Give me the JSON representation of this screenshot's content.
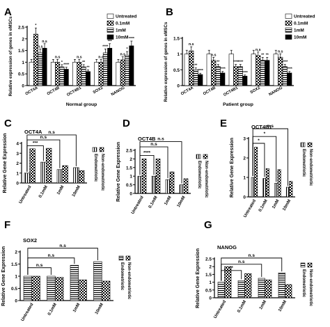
{
  "colors": {
    "ink": "#000000",
    "white": "#ffffff",
    "light_fill": "#e6e6e6"
  },
  "chart_data": [
    {
      "id": "A",
      "panel_label": "A",
      "type": "bar",
      "xlabel": "Normal group",
      "ylabel": "Relative expression of genes in eMSCs",
      "ylim": [
        0,
        2.5
      ],
      "yticks": [
        0,
        0.5,
        1,
        1.5,
        2,
        2.5
      ],
      "categories": [
        "OCT4A",
        "OCT4B",
        "OCT4B1",
        "SOX2",
        "NANOG"
      ],
      "legend_position": "top-right",
      "series": [
        {
          "name": "Untreated",
          "pattern": "white",
          "values": [
            1.0,
            1.0,
            1.0,
            1.0,
            1.0
          ]
        },
        {
          "name": "0.1mM",
          "pattern": "check",
          "values": [
            2.2,
            1.0,
            1.0,
            1.0,
            1.1
          ]
        },
        {
          "name": "1mM",
          "pattern": "hstripe",
          "values": [
            1.4,
            0.8,
            0.8,
            1.4,
            1.3
          ]
        },
        {
          "name": "10mM",
          "pattern": "black",
          "values": [
            1.6,
            0.7,
            0.6,
            1.6,
            1.7
          ]
        }
      ],
      "annotations": [
        {
          "cat": 0,
          "series": 1,
          "text": "*"
        },
        {
          "cat": 0,
          "series": 2,
          "text": "n.s"
        },
        {
          "cat": 0,
          "series": 3,
          "text": "n.s"
        },
        {
          "cat": 1,
          "series": 1,
          "text": "n.s"
        },
        {
          "cat": 1,
          "series": 2,
          "text": "*"
        },
        {
          "cat": 1,
          "series": 3,
          "text": "****"
        },
        {
          "cat": 2,
          "series": 1,
          "text": "n.s"
        },
        {
          "cat": 2,
          "series": 2,
          "text": "**"
        },
        {
          "cat": 2,
          "series": 3,
          "text": "**"
        },
        {
          "cat": 3,
          "series": 1,
          "text": "n.s"
        },
        {
          "cat": 3,
          "series": 2,
          "text": "****"
        },
        {
          "cat": 3,
          "series": 3,
          "text": "***"
        },
        {
          "cat": 4,
          "series": 1,
          "text": "n.s"
        },
        {
          "cat": 4,
          "series": 2,
          "text": "*"
        },
        {
          "cat": 4,
          "series": 3,
          "text": "****"
        }
      ]
    },
    {
      "id": "B",
      "panel_label": "B",
      "type": "bar",
      "xlabel": "Patient group",
      "ylabel": "Relative expression of genes in eMSCs",
      "ylim": [
        0,
        1.5
      ],
      "yticks": [
        0,
        0.5,
        1,
        1.5
      ],
      "categories": [
        "OCT4A",
        "OCT4B",
        "OCT4B1",
        "SOX2",
        "NANOG"
      ],
      "legend_position": "top-right",
      "series": [
        {
          "name": "Untreated",
          "pattern": "white",
          "values": [
            1.0,
            1.0,
            1.0,
            1.0,
            1.0
          ]
        },
        {
          "name": "0.1mM",
          "pattern": "check",
          "values": [
            1.1,
            0.8,
            0.6,
            0.95,
            0.9
          ]
        },
        {
          "name": "1mM",
          "pattern": "hstripe",
          "values": [
            0.5,
            0.6,
            0.6,
            0.8,
            0.6
          ]
        },
        {
          "name": "10mM",
          "pattern": "black",
          "values": [
            0.35,
            0.4,
            0.3,
            0.8,
            0.4
          ]
        }
      ],
      "annotations": [
        {
          "cat": 0,
          "series": 1,
          "text": "n.s"
        },
        {
          "cat": 0,
          "series": 2,
          "text": "**"
        },
        {
          "cat": 0,
          "series": 3,
          "text": "****"
        },
        {
          "cat": 1,
          "series": 1,
          "text": "n.s"
        },
        {
          "cat": 1,
          "series": 2,
          "text": "**"
        },
        {
          "cat": 1,
          "series": 3,
          "text": "****"
        },
        {
          "cat": 2,
          "series": 1,
          "text": "****"
        },
        {
          "cat": 2,
          "series": 2,
          "text": "****"
        },
        {
          "cat": 2,
          "series": 3,
          "text": "****"
        },
        {
          "cat": 3,
          "series": 1,
          "text": "n.s"
        },
        {
          "cat": 3,
          "series": 2,
          "text": "**"
        },
        {
          "cat": 3,
          "series": 3,
          "text": "**"
        },
        {
          "cat": 4,
          "series": 1,
          "text": "n.s"
        },
        {
          "cat": 4,
          "series": 2,
          "text": "****"
        },
        {
          "cat": 4,
          "series": 3,
          "text": "****"
        }
      ]
    },
    {
      "id": "C",
      "panel_label": "C",
      "type": "bar",
      "title": "OCT4A",
      "ylabel": "Relative Gene Expression",
      "ylim": [
        0,
        4
      ],
      "yticks": [
        0,
        1,
        2,
        3,
        4
      ],
      "categories": [
        "Untreated",
        "0.1mM",
        "1mM",
        "10mM"
      ],
      "legend_position": "right",
      "series": [
        {
          "name": "Endometriotic",
          "pattern": "vstripe",
          "values": [
            1.0,
            2.1,
            1.35,
            1.55
          ]
        },
        {
          "name": "Non-endometriotic",
          "pattern": "check",
          "values": [
            3.45,
            3.5,
            1.75,
            1.25
          ]
        }
      ],
      "brackets": [
        {
          "from": 0,
          "to": 1,
          "level": 3.75,
          "text": "***"
        },
        {
          "from": 0,
          "to": 2,
          "level": 4.35,
          "text": "n.s"
        },
        {
          "from": 0,
          "to": 3,
          "level": 4.85,
          "text": "n.s"
        }
      ]
    },
    {
      "id": "D",
      "panel_label": "D",
      "type": "bar",
      "title": "OCT4B",
      "ylabel": "Relative Gene Expression",
      "ylim": [
        0,
        2.5
      ],
      "yticks": [
        0,
        0.5,
        1,
        1.5,
        2,
        2.5
      ],
      "categories": [
        "Untreated",
        "0.1mM",
        "1mM",
        "10mM"
      ],
      "legend_position": "right",
      "series": [
        {
          "name": "Endometriotic",
          "pattern": "vstripe",
          "values": [
            1.0,
            1.0,
            0.8,
            0.5
          ]
        },
        {
          "name": "Non-endometriotic",
          "pattern": "check",
          "values": [
            2.0,
            2.0,
            1.25,
            0.85
          ]
        }
      ],
      "brackets": [
        {
          "from": 0,
          "to": 1,
          "level": 2.2,
          "text": "****"
        },
        {
          "from": 0,
          "to": 2,
          "level": 2.7,
          "text": "n.s"
        },
        {
          "from": 0,
          "to": 3,
          "level": 3.0,
          "text": "n.s"
        }
      ]
    },
    {
      "id": "E",
      "panel_label": "E",
      "type": "bar",
      "title": "OCT4B1",
      "ylabel": "Relative Gene Expression",
      "ylim": [
        0,
        3
      ],
      "yticks": [
        0,
        1,
        2,
        3
      ],
      "categories": [
        "Untreated",
        "0.1mM",
        "1mM",
        "10mM"
      ],
      "legend_position": "right",
      "series": [
        {
          "name": "Endometriotic",
          "pattern": "vstripe",
          "values": [
            1.0,
            0.95,
            0.7,
            0.5
          ]
        },
        {
          "name": "Non-endometriotic",
          "pattern": "check",
          "values": [
            2.55,
            1.45,
            1.4,
            0.8
          ]
        }
      ],
      "brackets": [
        {
          "from": 0,
          "to": 1,
          "level": 2.75,
          "text": "*"
        },
        {
          "from": 0,
          "to": 2,
          "level": 3.1,
          "text": "*"
        },
        {
          "from": 0,
          "to": 3,
          "level": 3.5,
          "text": "n.s"
        }
      ]
    },
    {
      "id": "F",
      "panel_label": "F",
      "type": "bar",
      "title": "SOX2",
      "ylabel": "Relative Gene Expression",
      "ylim": [
        0,
        2
      ],
      "yticks": [
        0,
        0.5,
        1,
        1.5,
        2
      ],
      "categories": [
        "Untreated",
        "0.1mM",
        "1mM",
        "10mM"
      ],
      "legend_position": "right",
      "series": [
        {
          "name": "Endometriotic",
          "pattern": "hstripe",
          "values": [
            1.0,
            1.0,
            1.45,
            1.6
          ]
        },
        {
          "name": "Non-endometriotic",
          "pattern": "check",
          "values": [
            1.0,
            0.95,
            0.85,
            0.8
          ]
        }
      ],
      "brackets": [
        {
          "from": 0,
          "to": 1,
          "level": 1.35,
          "text": "n.s"
        },
        {
          "from": 0,
          "to": 2,
          "level": 1.75,
          "text": "n.s"
        },
        {
          "from": 0,
          "to": 3,
          "level": 2.15,
          "text": "n.s"
        }
      ]
    },
    {
      "id": "G",
      "panel_label": "G",
      "type": "bar",
      "title": "NANOG",
      "ylabel": "Relative Gene Expression",
      "ylim": [
        0,
        2.5
      ],
      "yticks": [
        0,
        0.5,
        1,
        1.5,
        2,
        2.5
      ],
      "categories": [
        "Untreated",
        "0.1mM",
        "1mM",
        "10mM"
      ],
      "legend_position": "right",
      "series": [
        {
          "name": "Endometriotic",
          "pattern": "hstripe",
          "values": [
            1.0,
            1.1,
            1.25,
            1.6
          ]
        },
        {
          "name": "Non-endometriotic",
          "pattern": "check",
          "values": [
            2.0,
            1.55,
            1.15,
            0.85
          ]
        }
      ],
      "brackets": [
        {
          "from": 0,
          "to": 1,
          "level": 1.75,
          "text": "**"
        },
        {
          "from": 0,
          "to": 2,
          "level": 2.15,
          "text": "n.s"
        },
        {
          "from": 0,
          "to": 3,
          "level": 2.55,
          "text": "n.s"
        }
      ]
    }
  ]
}
